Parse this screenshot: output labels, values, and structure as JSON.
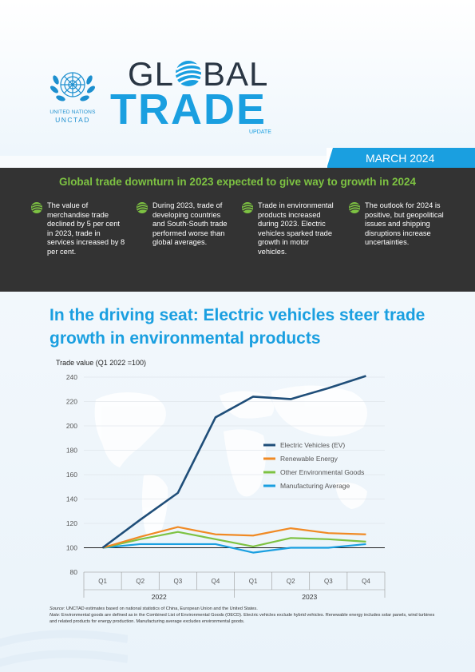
{
  "header": {
    "org_line1": "UNITED NATIONS",
    "org_line2": "UNCTAD",
    "title_part1": "GL",
    "title_part2": "BAL",
    "title_line2": "TRADE",
    "subtitle": "UPDATE",
    "date": "MARCH 2024",
    "accent_color": "#1a9fe0"
  },
  "highlights": {
    "title": "Global trade downturn in 2023 expected to give way to growth in 2024",
    "items": [
      {
        "icon": "globe-swoosh-icon",
        "text": "The value of merchandise trade declined by 5 per cent in 2023, trade in services increased by 8 per cent."
      },
      {
        "icon": "globe-swoosh-icon",
        "text": "During 2023, trade of developing countries and South-South trade performed worse than global averages."
      },
      {
        "icon": "globe-swoosh-icon",
        "text": "Trade in environmental products increased during 2023. Electric vehicles sparked trade growth in motor vehicles."
      },
      {
        "icon": "globe-swoosh-icon",
        "text": "The outlook for 2024 is positive, but geopolitical issues and shipping disruptions increase uncertainties."
      }
    ]
  },
  "section": {
    "title": "In the driving seat: Electric vehicles steer trade growth in environmental products"
  },
  "chart_data": {
    "type": "line",
    "title": "",
    "ylabel": "Trade value (Q1 2022 =100)",
    "xlabel": "",
    "ylim": [
      80,
      240
    ],
    "yticks": [
      80,
      100,
      120,
      140,
      160,
      180,
      200,
      220,
      240
    ],
    "categories": [
      "Q1",
      "Q2",
      "Q3",
      "Q4",
      "Q1",
      "Q2",
      "Q3",
      "Q4"
    ],
    "groups": [
      {
        "label": "2022",
        "span": [
          0,
          3
        ]
      },
      {
        "label": "2023",
        "span": [
          4,
          7
        ]
      }
    ],
    "grid": true,
    "legend_position": "center-right",
    "series": [
      {
        "name": "Electric Vehicles (EV)",
        "color": "#1f4e79",
        "values": [
          100,
          123,
          145,
          207,
          224,
          222,
          231,
          241
        ]
      },
      {
        "name": "Renewable Energy",
        "color": "#f08a24",
        "values": [
          100,
          109,
          117,
          111,
          110,
          116,
          112,
          111
        ]
      },
      {
        "name": "Other Environmental Goods",
        "color": "#7dc242",
        "values": [
          100,
          107,
          113,
          107,
          101,
          108,
          107,
          105
        ]
      },
      {
        "name": "Manufacturing Average",
        "color": "#1a9fe0",
        "values": [
          100,
          103,
          103,
          103,
          96,
          100,
          100,
          103
        ]
      }
    ]
  },
  "notes": {
    "source_label": "Source:",
    "source_text": " UNCTAD estimates based on national statistics of China, European Union and the United States.",
    "note_label": "Note:",
    "note_text": " Environmental goods are defined as in the Combined List of Environmental Goods (OECD). Electric vehicles exclude hybrid vehicles. Renewable energy includes solar panels, wind turbines and related products for energy production. Manufacturing average excludes environmental goods."
  }
}
